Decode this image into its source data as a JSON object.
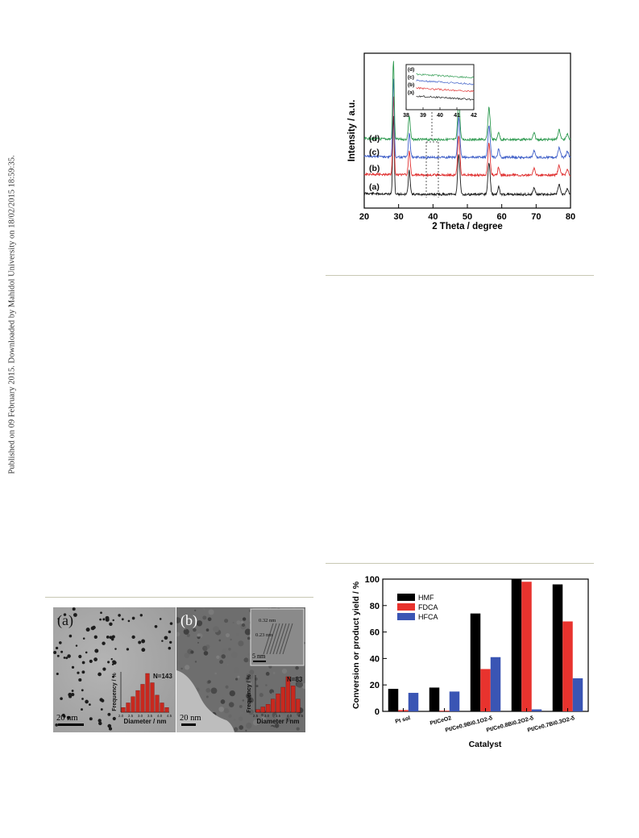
{
  "side_note": "Published on 09 February 2015. Downloaded by Mahidol University on 18/02/2015 18:59:35.",
  "chart_data": [
    {
      "type": "line",
      "xlabel": "2 Theta / degree",
      "ylabel": "Intensity / a.u.",
      "xlim": [
        20,
        80
      ],
      "x_ticks": [
        "20",
        "30",
        "40",
        "50",
        "60",
        "70",
        "80"
      ],
      "grid": false,
      "series": [
        {
          "name": "(a)",
          "color": "#1a1a1a"
        },
        {
          "name": "(b)",
          "color": "#e03030"
        },
        {
          "name": "(c)",
          "color": "#4060c8"
        },
        {
          "name": "(d)",
          "color": "#2e9a50"
        }
      ],
      "peaks_2theta": [
        28.5,
        33.1,
        47.5,
        56.3,
        59.1,
        69.4,
        76.7,
        79.1
      ],
      "inset": {
        "xlim": [
          38,
          42
        ],
        "x_ticks": [
          "38",
          "39",
          "40",
          "41",
          "42"
        ],
        "labels": [
          "(d)",
          "(c)",
          "(b)",
          "(a)"
        ]
      }
    },
    {
      "type": "bar",
      "xlabel": "Catalyst",
      "ylabel": "Conversion or product yield / %",
      "ylim": [
        0,
        100
      ],
      "y_ticks": [
        "0",
        "20",
        "40",
        "60",
        "80",
        "100"
      ],
      "categories": [
        "Pt sol",
        "Pt/CeO2",
        "Pt/Ce0.9Bi0.1O2-δ",
        "Pt/Ce0.8Bi0.2O2-δ",
        "Pt/Ce0.7Bi0.3O2-δ"
      ],
      "legend_position": "top-left",
      "series": [
        {
          "name": "HMF",
          "color": "#000000",
          "values": [
            17,
            18,
            74,
            100,
            96
          ]
        },
        {
          "name": "FDCA",
          "color": "#e8332e",
          "values": [
            1,
            0.5,
            32,
            98,
            68
          ]
        },
        {
          "name": "HFCA",
          "color": "#3a55b4",
          "values": [
            14,
            15,
            41,
            1.5,
            25
          ]
        }
      ]
    }
  ],
  "tem": {
    "panels": [
      {
        "label": "(a)",
        "scale_bar": "20 nm",
        "count": "N=143",
        "hist_xlabel": "Diameter / nm",
        "hist_ylabel": "Frequency / %",
        "hist_ticks": [
          "2.0",
          "2.5",
          "3.0",
          "3.5",
          "4.0",
          "4.5"
        ],
        "hist_values": [
          3,
          6,
          10,
          14,
          18,
          25,
          19,
          11,
          6,
          3
        ]
      },
      {
        "label": "(b)",
        "scale_bar": "20 nm",
        "inset_scale": "5 nm",
        "lattice_1": "0.32 nm",
        "lattice_2": "0.23 nm",
        "count": "N=83",
        "hist_xlabel": "Diameter / nm",
        "hist_ylabel": "Frequency / %",
        "hist_ticks": [
          "2.5",
          "3.0",
          "3.5",
          "4.0",
          "4.5"
        ],
        "hist_values": [
          2,
          4,
          6,
          10,
          14,
          19,
          27,
          20,
          10
        ]
      }
    ]
  }
}
